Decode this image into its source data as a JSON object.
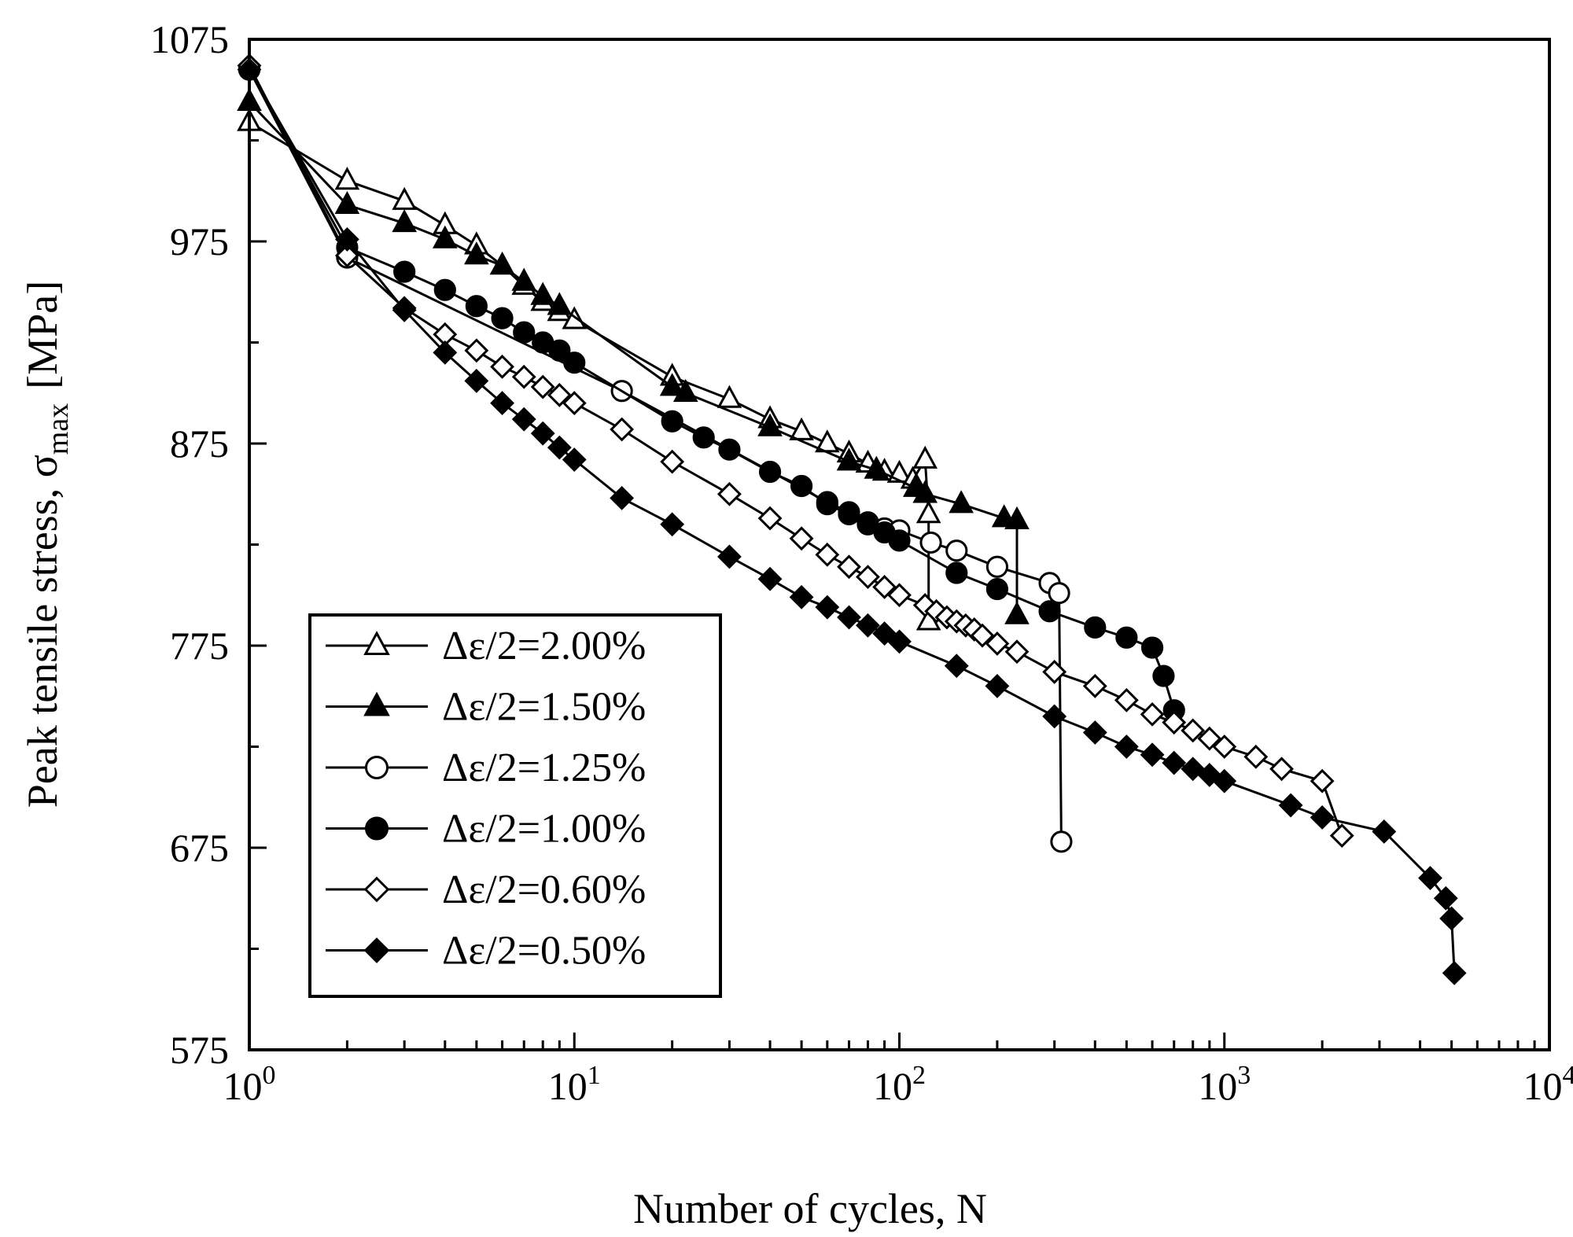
{
  "chart_data": {
    "type": "line",
    "xscale": "log",
    "xlabel": "Number of cycles, N",
    "ylabel_main": "Peak tensile stress, σ",
    "ylabel_sub": "max",
    "ylabel_unit": "[MPa]",
    "xlim": [
      1,
      10000
    ],
    "ylim": [
      575,
      1075
    ],
    "x_ticks": [
      {
        "value": 1,
        "base": "10",
        "exp": "0"
      },
      {
        "value": 10,
        "base": "10",
        "exp": "1"
      },
      {
        "value": 100,
        "base": "10",
        "exp": "2"
      },
      {
        "value": 1000,
        "base": "10",
        "exp": "3"
      },
      {
        "value": 10000,
        "base": "10",
        "exp": "4"
      }
    ],
    "y_ticks": [
      "575",
      "675",
      "775",
      "875",
      "975",
      "1075"
    ],
    "y_minor_step": 50,
    "legend_position": "bottom-left",
    "series": [
      {
        "name": "Δε/2=2.00%",
        "marker": "triangle-open",
        "x": [
          1,
          2,
          3,
          4,
          5,
          6,
          7,
          8,
          9,
          10,
          20,
          30,
          40,
          50,
          60,
          70,
          80,
          90,
          100,
          110,
          120,
          123,
          123
        ],
        "y": [
          1034,
          1005,
          995,
          983,
          973,
          963,
          953,
          945,
          940,
          936,
          908,
          897,
          887,
          881,
          875,
          870,
          865,
          861,
          860,
          857,
          867,
          840,
          787
        ]
      },
      {
        "name": "Δε/2=1.50%",
        "marker": "triangle-filled",
        "x": [
          1,
          2,
          3,
          4,
          5,
          6,
          7,
          8,
          9,
          20,
          22,
          40,
          70,
          85,
          112,
          120,
          155,
          210,
          230,
          230
        ],
        "y": [
          1044,
          993,
          984,
          976,
          968,
          963,
          955,
          948,
          943,
          903,
          900,
          883,
          866,
          862,
          853,
          850,
          845,
          838,
          837,
          790
        ]
      },
      {
        "name": "Δε/2=1.25%",
        "marker": "circle-open",
        "x": [
          1,
          2,
          14,
          60,
          70,
          80,
          90,
          100,
          125,
          150,
          200,
          290,
          310,
          315
        ],
        "y": [
          1060,
          967,
          901,
          846,
          841,
          836,
          833,
          832,
          826,
          822,
          814,
          806,
          801,
          678
        ]
      },
      {
        "name": "Δε/2=1.00%",
        "marker": "circle-filled",
        "x": [
          1,
          2,
          3,
          4,
          5,
          6,
          7,
          8,
          9,
          10,
          20,
          25,
          30,
          40,
          50,
          60,
          70,
          80,
          90,
          100,
          150,
          200,
          290,
          400,
          500,
          600,
          650,
          700
        ],
        "y": [
          1060,
          972,
          960,
          951,
          943,
          937,
          930,
          925,
          921,
          915,
          886,
          878,
          872,
          861,
          854,
          845,
          840,
          835,
          831,
          827,
          811,
          803,
          792,
          784,
          779,
          774,
          760,
          743
        ]
      },
      {
        "name": "Δε/2=0.60%",
        "marker": "diamond-open",
        "x": [
          1,
          2,
          3,
          4,
          5,
          6,
          7,
          8,
          9,
          10,
          14,
          20,
          30,
          40,
          50,
          60,
          70,
          80,
          90,
          100,
          120,
          130,
          140,
          150,
          160,
          170,
          180,
          200,
          230,
          300,
          400,
          500,
          600,
          700,
          800,
          900,
          1000,
          1250,
          1500,
          2000,
          2300
        ],
        "y": [
          1062,
          968,
          942,
          929,
          921,
          913,
          908,
          903,
          899,
          895,
          882,
          866,
          850,
          838,
          828,
          820,
          814,
          809,
          804,
          800,
          795,
          792,
          789,
          787,
          785,
          783,
          780,
          776,
          772,
          762,
          755,
          748,
          741,
          737,
          733,
          729,
          725,
          720,
          714,
          708,
          681
        ]
      },
      {
        "name": "Δε/2=0.50%",
        "marker": "diamond-filled",
        "x": [
          1,
          2,
          3,
          4,
          5,
          6,
          7,
          8,
          9,
          10,
          14,
          20,
          30,
          40,
          50,
          60,
          70,
          80,
          90,
          100,
          150,
          200,
          300,
          400,
          500,
          600,
          700,
          800,
          900,
          1000,
          1600,
          2000,
          3100,
          4300,
          4800,
          5000,
          5100
        ],
        "y": [
          1060,
          976,
          941,
          920,
          906,
          895,
          887,
          880,
          873,
          867,
          848,
          835,
          819,
          808,
          799,
          794,
          789,
          785,
          781,
          777,
          765,
          755,
          740,
          732,
          725,
          721,
          717,
          714,
          711,
          708,
          696,
          690,
          683,
          660,
          650,
          640,
          613
        ]
      }
    ]
  }
}
